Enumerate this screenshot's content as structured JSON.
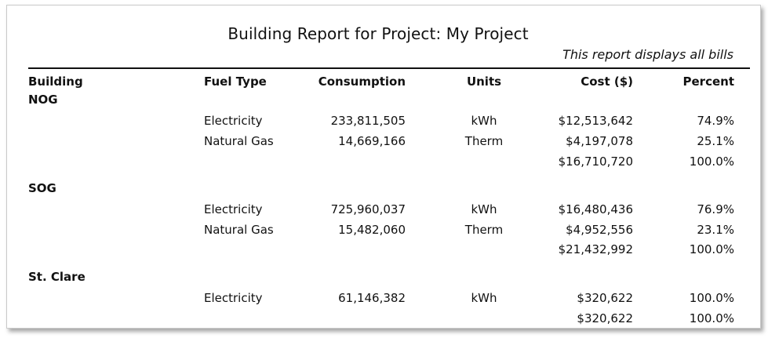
{
  "report": {
    "title": "Building Report for Project: My Project",
    "subtitle": "This report displays all bills"
  },
  "columns": {
    "building": "Building",
    "fuel_type": "Fuel Type",
    "consumption": "Consumption",
    "units": "Units",
    "cost": "Cost ($)",
    "percent": "Percent"
  },
  "buildings": [
    {
      "name": "NOG",
      "rows": [
        {
          "fuel": "Electricity",
          "consumption": "233,811,505",
          "units": "kWh",
          "cost": "$12,513,642",
          "percent": "74.9%"
        },
        {
          "fuel": "Natural Gas",
          "consumption": "14,669,166",
          "units": "Therm",
          "cost": "$4,197,078",
          "percent": "25.1%"
        }
      ],
      "total": {
        "cost": "$16,710,720",
        "percent": "100.0%"
      }
    },
    {
      "name": "SOG",
      "rows": [
        {
          "fuel": "Electricity",
          "consumption": "725,960,037",
          "units": "kWh",
          "cost": "$16,480,436",
          "percent": "76.9%"
        },
        {
          "fuel": "Natural Gas",
          "consumption": "15,482,060",
          "units": "Therm",
          "cost": "$4,952,556",
          "percent": "23.1%"
        }
      ],
      "total": {
        "cost": "$21,432,992",
        "percent": "100.0%"
      }
    },
    {
      "name": "St. Clare",
      "rows": [
        {
          "fuel": "Electricity",
          "consumption": "61,146,382",
          "units": "kWh",
          "cost": "$320,622",
          "percent": "100.0%"
        }
      ],
      "total": {
        "cost": "$320,622",
        "percent": "100.0%"
      }
    }
  ]
}
